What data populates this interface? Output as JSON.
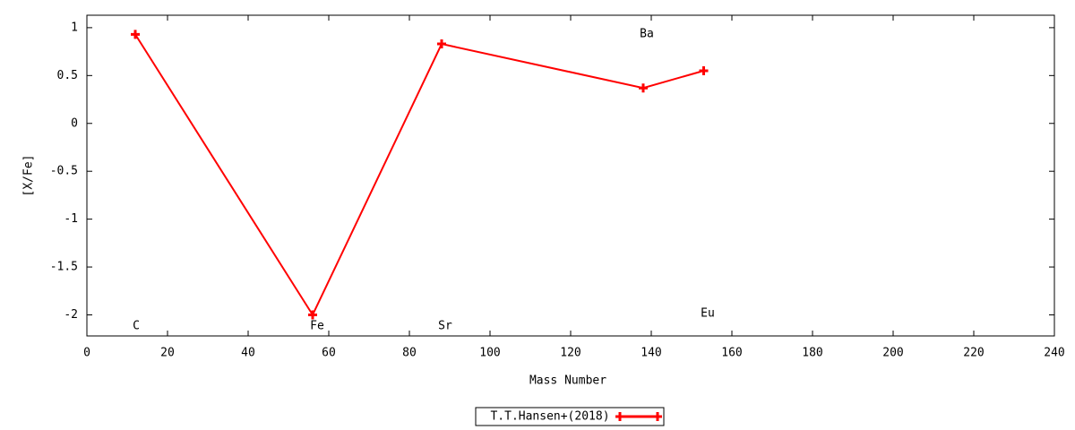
{
  "chart_data": {
    "type": "line",
    "x_label": "Mass Number",
    "y_label": "[X/Fe]",
    "series": [
      {
        "name": "T.T.Hansen+(2018)",
        "color": "#ff0000",
        "x": [
          12,
          56,
          88,
          138,
          153
        ],
        "values": [
          0.93,
          -2,
          0.83,
          0.37,
          0.55
        ]
      }
    ],
    "annotations": [
      "C",
      "Fe",
      "Sr",
      "Ba",
      "Eu"
    ],
    "xlim": [
      0,
      240
    ],
    "xticks": [
      0,
      20,
      40,
      60,
      80,
      100,
      120,
      140,
      160,
      180,
      200,
      220,
      240
    ],
    "ylim": [
      -2.22,
      1.13
    ],
    "yticks": [
      1,
      0.5,
      0,
      -0.5,
      -1,
      -1.5,
      -2
    ],
    "grid": false,
    "legend": "bottom"
  }
}
